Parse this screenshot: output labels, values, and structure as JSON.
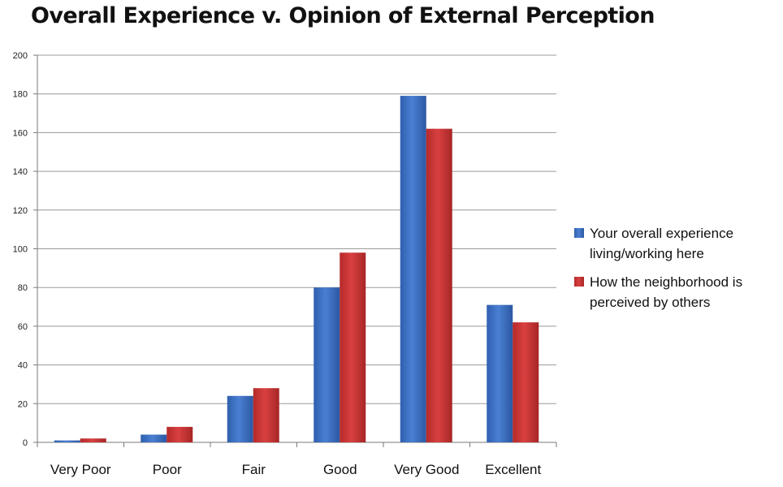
{
  "chart_data": {
    "type": "bar",
    "title": "Overall Experience v. Opinion of External Perception",
    "xlabel": "",
    "ylabel": "",
    "categories": [
      "Very Poor",
      "Poor",
      "Fair",
      "Good",
      "Very Good",
      "Excellent"
    ],
    "series": [
      {
        "name": "Your overall experience living/working here",
        "legend_lines": [
          "Your overall experience",
          "living/working here"
        ],
        "color": "#3b6fc4",
        "values": [
          1,
          4,
          24,
          80,
          179,
          71
        ]
      },
      {
        "name": "How the neighborhood is perceived by others",
        "legend_lines": [
          "How the neighborhood is",
          "perceived by others"
        ],
        "color": "#c93434",
        "values": [
          2,
          8,
          28,
          98,
          162,
          62
        ]
      }
    ],
    "ylim": [
      0,
      200
    ],
    "yticks": [
      0,
      20,
      40,
      60,
      80,
      100,
      120,
      140,
      160,
      180,
      200
    ],
    "grid": true,
    "legend": "right"
  }
}
